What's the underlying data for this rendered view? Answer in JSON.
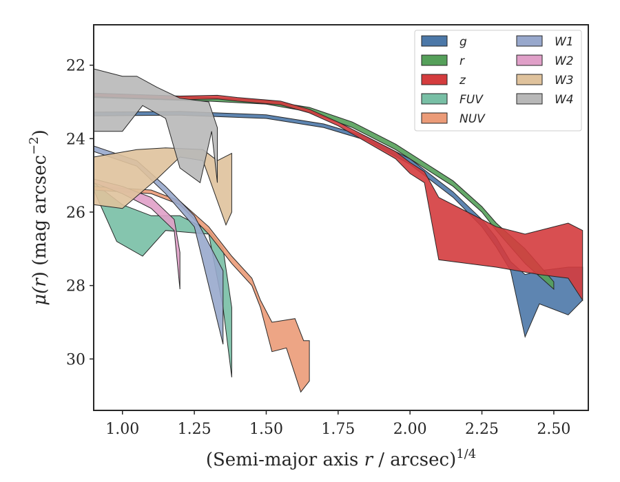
{
  "chart_data": {
    "type": "area",
    "xlabel_main": "(Semi-major axis ",
    "xlabel_var": "r",
    "xlabel_rest": " / arcsec)",
    "xlabel_sup": "1/4",
    "ylabel_mu": "μ(",
    "ylabel_var": "r",
    "ylabel_paren": ") (mag arcsec",
    "ylabel_sup": "−2",
    "ylabel_close": ")",
    "xlim": [
      0.9,
      2.62
    ],
    "ylim": [
      31.4,
      20.9
    ],
    "xticks": [
      1.0,
      1.25,
      1.5,
      1.75,
      2.0,
      2.25,
      2.5
    ],
    "xtick_labels": [
      "1.00",
      "1.25",
      "1.50",
      "1.75",
      "2.00",
      "2.25",
      "2.50"
    ],
    "yticks": [
      22,
      24,
      26,
      28,
      30
    ],
    "ytick_labels": [
      "22",
      "24",
      "26",
      "28",
      "30"
    ],
    "legend_position": "top-right",
    "series": [
      {
        "name": "g",
        "color": "#4c78a8",
        "upper": [
          [
            0.9,
            23.28
          ],
          [
            1.2,
            23.26
          ],
          [
            1.5,
            23.35
          ],
          [
            1.7,
            23.6
          ],
          [
            1.85,
            23.95
          ],
          [
            2.0,
            24.55
          ],
          [
            2.15,
            25.45
          ],
          [
            2.25,
            26.2
          ],
          [
            2.3,
            26.7
          ],
          [
            2.35,
            27.35
          ],
          [
            2.4,
            27.7
          ],
          [
            2.45,
            27.6
          ],
          [
            2.55,
            27.5
          ],
          [
            2.6,
            27.5
          ]
        ],
        "lower": [
          [
            0.9,
            23.38
          ],
          [
            1.2,
            23.36
          ],
          [
            1.5,
            23.45
          ],
          [
            1.7,
            23.7
          ],
          [
            1.85,
            24.05
          ],
          [
            2.0,
            24.7
          ],
          [
            2.15,
            25.6
          ],
          [
            2.25,
            26.4
          ],
          [
            2.3,
            26.95
          ],
          [
            2.35,
            27.6
          ],
          [
            2.4,
            29.4
          ],
          [
            2.45,
            28.5
          ],
          [
            2.55,
            28.8
          ],
          [
            2.6,
            28.4
          ]
        ]
      },
      {
        "name": "r",
        "color": "#55a05a",
        "upper": [
          [
            0.9,
            22.78
          ],
          [
            1.3,
            22.88
          ],
          [
            1.5,
            22.96
          ],
          [
            1.65,
            23.15
          ],
          [
            1.8,
            23.55
          ],
          [
            1.95,
            24.15
          ],
          [
            2.05,
            24.65
          ],
          [
            2.15,
            25.15
          ],
          [
            2.25,
            25.85
          ],
          [
            2.3,
            26.3
          ],
          [
            2.4,
            27.0
          ],
          [
            2.5,
            27.9
          ]
        ],
        "lower": [
          [
            0.9,
            22.88
          ],
          [
            1.3,
            22.98
          ],
          [
            1.5,
            23.06
          ],
          [
            1.65,
            23.27
          ],
          [
            1.8,
            23.7
          ],
          [
            1.95,
            24.3
          ],
          [
            2.05,
            24.8
          ],
          [
            2.15,
            25.3
          ],
          [
            2.25,
            26.0
          ],
          [
            2.3,
            26.5
          ],
          [
            2.4,
            27.4
          ],
          [
            2.5,
            28.1
          ]
        ]
      },
      {
        "name": "z",
        "color": "#d43c3e",
        "upper": [
          [
            0.9,
            22.76
          ],
          [
            1.2,
            22.84
          ],
          [
            1.33,
            22.82
          ],
          [
            1.4,
            22.88
          ],
          [
            1.55,
            22.98
          ],
          [
            1.65,
            23.2
          ],
          [
            1.75,
            23.55
          ],
          [
            1.85,
            23.95
          ],
          [
            1.95,
            24.35
          ],
          [
            2.0,
            24.65
          ],
          [
            2.05,
            24.9
          ],
          [
            2.1,
            25.6
          ],
          [
            2.2,
            26.0
          ],
          [
            2.3,
            26.4
          ],
          [
            2.4,
            26.6
          ],
          [
            2.55,
            26.3
          ],
          [
            2.6,
            26.5
          ]
        ],
        "lower": [
          [
            0.9,
            22.86
          ],
          [
            1.2,
            22.94
          ],
          [
            1.33,
            22.92
          ],
          [
            1.4,
            22.98
          ],
          [
            1.55,
            23.08
          ],
          [
            1.65,
            23.3
          ],
          [
            1.75,
            23.65
          ],
          [
            1.85,
            24.1
          ],
          [
            1.95,
            24.55
          ],
          [
            2.0,
            24.95
          ],
          [
            2.05,
            25.2
          ],
          [
            2.1,
            27.3
          ],
          [
            2.3,
            27.5
          ],
          [
            2.45,
            27.7
          ],
          [
            2.55,
            27.8
          ],
          [
            2.6,
            28.4
          ]
        ]
      },
      {
        "name": "FUV",
        "color": "#78bfa5",
        "upper": [
          [
            0.9,
            25.2
          ],
          [
            1.0,
            25.8
          ],
          [
            1.1,
            26.1
          ],
          [
            1.2,
            26.1
          ],
          [
            1.3,
            26.5
          ],
          [
            1.35,
            27.0
          ],
          [
            1.38,
            28.6
          ]
        ],
        "lower": [
          [
            0.9,
            25.4
          ],
          [
            0.98,
            26.8
          ],
          [
            1.07,
            27.2
          ],
          [
            1.15,
            26.5
          ],
          [
            1.3,
            26.6
          ],
          [
            1.35,
            28.6
          ],
          [
            1.38,
            30.5
          ]
        ]
      },
      {
        "name": "NUV",
        "color": "#eb9b78",
        "upper": [
          [
            0.9,
            25.3
          ],
          [
            1.1,
            25.4
          ],
          [
            1.2,
            25.7
          ],
          [
            1.3,
            26.4
          ],
          [
            1.38,
            27.2
          ],
          [
            1.45,
            27.8
          ],
          [
            1.48,
            28.4
          ],
          [
            1.52,
            29.0
          ],
          [
            1.6,
            28.9
          ],
          [
            1.63,
            29.5
          ],
          [
            1.65,
            29.5
          ]
        ],
        "lower": [
          [
            0.9,
            25.4
          ],
          [
            1.1,
            25.5
          ],
          [
            1.2,
            25.8
          ],
          [
            1.3,
            26.6
          ],
          [
            1.38,
            27.4
          ],
          [
            1.45,
            28.0
          ],
          [
            1.48,
            28.6
          ],
          [
            1.52,
            29.8
          ],
          [
            1.57,
            29.7
          ],
          [
            1.62,
            30.9
          ],
          [
            1.65,
            30.6
          ]
        ]
      },
      {
        "name": "W1",
        "color": "#98a8cc",
        "upper": [
          [
            0.9,
            24.2
          ],
          [
            1.05,
            24.6
          ],
          [
            1.15,
            25.3
          ],
          [
            1.25,
            26.1
          ],
          [
            1.35,
            27.6
          ]
        ],
        "lower": [
          [
            0.9,
            24.35
          ],
          [
            1.05,
            24.75
          ],
          [
            1.15,
            25.5
          ],
          [
            1.25,
            26.4
          ],
          [
            1.35,
            29.6
          ]
        ]
      },
      {
        "name": "W2",
        "color": "#e0a0c8",
        "upper": [
          [
            0.9,
            25.1
          ],
          [
            1.0,
            25.3
          ],
          [
            1.1,
            25.6
          ],
          [
            1.18,
            26.2
          ],
          [
            1.2,
            27.1
          ]
        ],
        "lower": [
          [
            0.9,
            25.2
          ],
          [
            1.0,
            25.5
          ],
          [
            1.1,
            25.9
          ],
          [
            1.18,
            26.5
          ],
          [
            1.2,
            28.1
          ]
        ]
      },
      {
        "name": "W3",
        "color": "#dfc29c",
        "upper": [
          [
            0.9,
            24.5
          ],
          [
            1.05,
            24.3
          ],
          [
            1.15,
            24.25
          ],
          [
            1.28,
            24.3
          ],
          [
            1.33,
            24.6
          ],
          [
            1.38,
            24.4
          ]
        ],
        "lower": [
          [
            0.9,
            25.8
          ],
          [
            1.0,
            25.9
          ],
          [
            1.12,
            25.1
          ],
          [
            1.2,
            24.5
          ],
          [
            1.28,
            24.6
          ],
          [
            1.36,
            26.35
          ],
          [
            1.38,
            26.0
          ]
        ]
      },
      {
        "name": "W4",
        "color": "#b8b8b8",
        "upper": [
          [
            0.9,
            22.1
          ],
          [
            1.0,
            22.3
          ],
          [
            1.05,
            22.3
          ],
          [
            1.12,
            22.6
          ],
          [
            1.2,
            22.9
          ],
          [
            1.3,
            23.0
          ],
          [
            1.33,
            23.7
          ]
        ],
        "lower": [
          [
            0.9,
            23.8
          ],
          [
            1.0,
            23.8
          ],
          [
            1.07,
            23.1
          ],
          [
            1.15,
            23.45
          ],
          [
            1.2,
            24.8
          ],
          [
            1.27,
            25.2
          ],
          [
            1.31,
            23.8
          ],
          [
            1.33,
            25.2
          ]
        ]
      }
    ]
  }
}
